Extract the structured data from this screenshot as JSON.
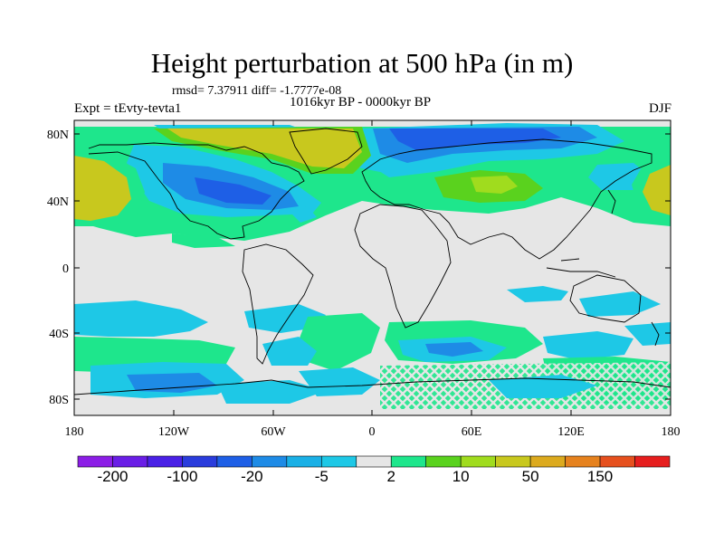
{
  "header": {
    "title": "Height perturbation at 500 hPa (in m)",
    "stats": "rmsd= 7.37911 diff= -1.7777e-08",
    "period": "1016kyr BP - 0000kyr BP",
    "experiment": "Expt = tEvty-tevta1",
    "season": "DJF"
  },
  "axes": {
    "lat_labels": [
      "80N",
      "40N",
      "0",
      "40S",
      "80S"
    ],
    "lon_labels": [
      "180",
      "120W",
      "60W",
      "0",
      "60E",
      "120E",
      "180"
    ]
  },
  "colorbar": {
    "colors": [
      "#8c1ee6",
      "#6a1ee6",
      "#4a21e6",
      "#2a3cdc",
      "#1e5fe6",
      "#1e8be6",
      "#1ab0e6",
      "#1ec8e6",
      "#e6e6e6",
      "#1ee68c",
      "#5ad21e",
      "#a0dc1e",
      "#c8c81e",
      "#dcaa1e",
      "#e6821e",
      "#e6501e",
      "#e61e1e"
    ],
    "tick_labels": [
      "-200",
      "-100",
      "-20",
      "-5",
      "2",
      "10",
      "50",
      "150"
    ]
  }
}
